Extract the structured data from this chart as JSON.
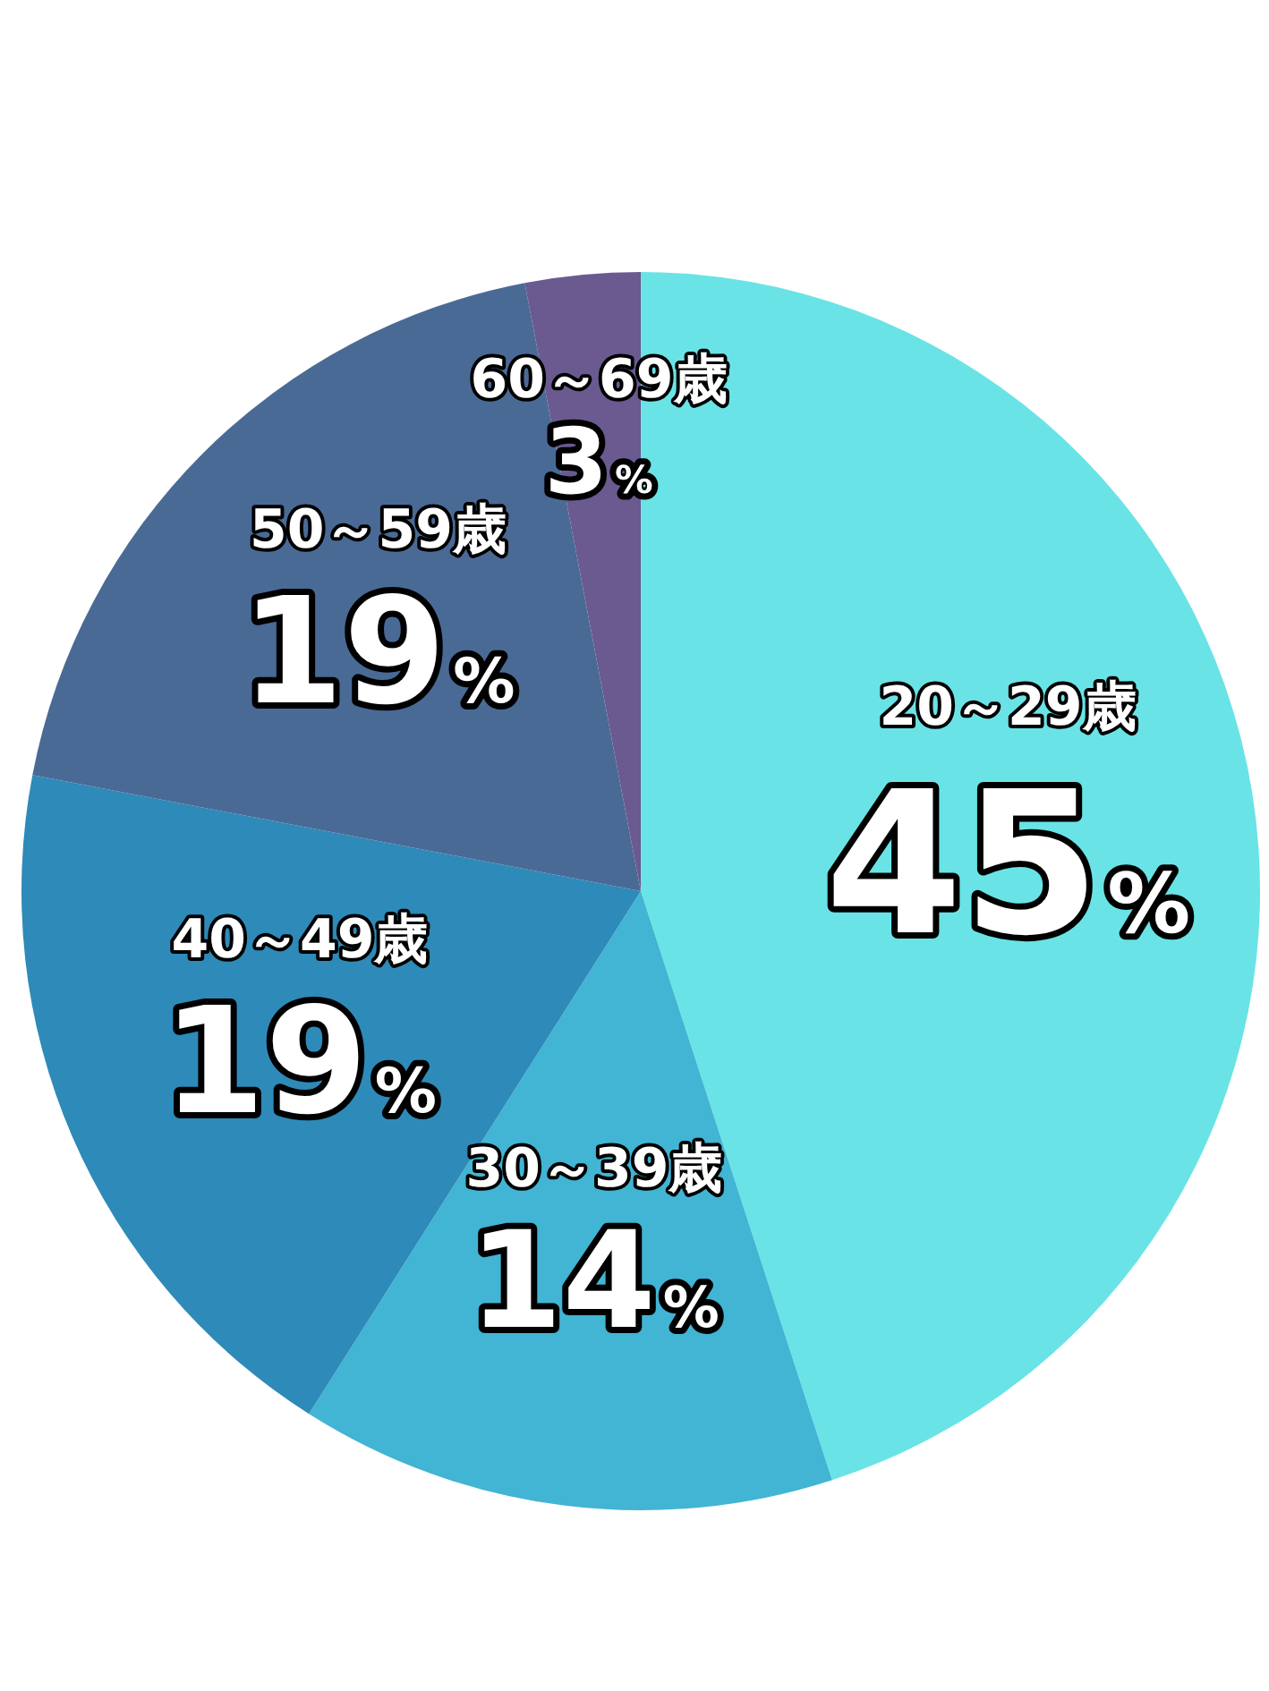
{
  "chart_data": {
    "type": "pie",
    "categories": [
      "20～29歳",
      "30～39歳",
      "40～49歳",
      "50～59歳",
      "60～69歳"
    ],
    "values": [
      45,
      14,
      19,
      19,
      3
    ],
    "value_labels": [
      "45%",
      "14%",
      "19%",
      "19%",
      "3%"
    ],
    "colors": [
      "#6ae3e6",
      "#42b4d4",
      "#2e8ab8",
      "#4a6a96",
      "#6a5a90"
    ]
  }
}
